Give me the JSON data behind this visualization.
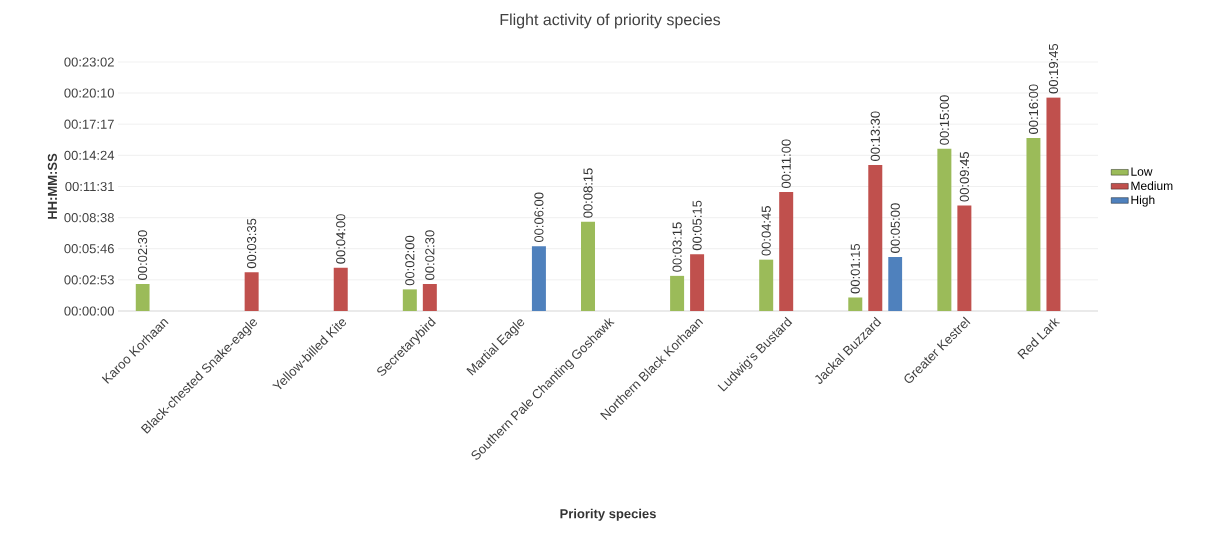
{
  "chart_data": {
    "type": "bar",
    "title": "Flight activity of priority species",
    "xlabel": "Priority species",
    "ylabel": "HH:MM:SS",
    "categories": [
      "Karoo Korhaan",
      "Black-chested Snake-eagle",
      "Yellow-billed Kite",
      "Secretarybird",
      "Martial Eagle",
      "Southern Pale Chanting Goshawk",
      "Northern Black Korhaan",
      "Ludwig's Bustard",
      "Jackal Buzzard",
      "Greater Kestrel",
      "Red Lark"
    ],
    "series": [
      {
        "name": "Low",
        "color": "#9bbb59",
        "values": [
          150,
          null,
          null,
          120,
          null,
          495,
          195,
          285,
          75,
          900,
          960
        ],
        "value_labels": [
          "00:02:30",
          null,
          null,
          "00:02:00",
          null,
          "00:08:15",
          "00:03:15",
          "00:04:45",
          "00:01:15",
          "00:15:00",
          "00:16:00"
        ]
      },
      {
        "name": "Medium",
        "color": "#c0504d",
        "values": [
          null,
          215,
          240,
          150,
          null,
          null,
          315,
          660,
          810,
          585,
          1185
        ],
        "value_labels": [
          null,
          "00:03:35",
          "00:04:00",
          "00:02:30",
          null,
          null,
          "00:05:15",
          "00:11:00",
          "00:13:30",
          "00:09:45",
          "00:19:45"
        ]
      },
      {
        "name": "High",
        "color": "#4f81bd",
        "values": [
          null,
          null,
          null,
          null,
          360,
          null,
          null,
          null,
          300,
          null,
          null
        ],
        "value_labels": [
          null,
          null,
          null,
          null,
          "00:06:00",
          null,
          null,
          null,
          "00:05:00",
          null,
          null
        ]
      }
    ],
    "ylim": [
      0,
      1382
    ],
    "yticks": [
      {
        "value": 0,
        "label": "00:00:00"
      },
      {
        "value": 173,
        "label": "00:02:53"
      },
      {
        "value": 346,
        "label": "00:05:46"
      },
      {
        "value": 518,
        "label": "00:08:38"
      },
      {
        "value": 691,
        "label": "00:11:31"
      },
      {
        "value": 864,
        "label": "00:14:24"
      },
      {
        "value": 1037,
        "label": "00:17:17"
      },
      {
        "value": 1210,
        "label": "00:20:10"
      },
      {
        "value": 1382,
        "label": "00:23:02"
      }
    ],
    "grid": "y",
    "legend": "right"
  }
}
